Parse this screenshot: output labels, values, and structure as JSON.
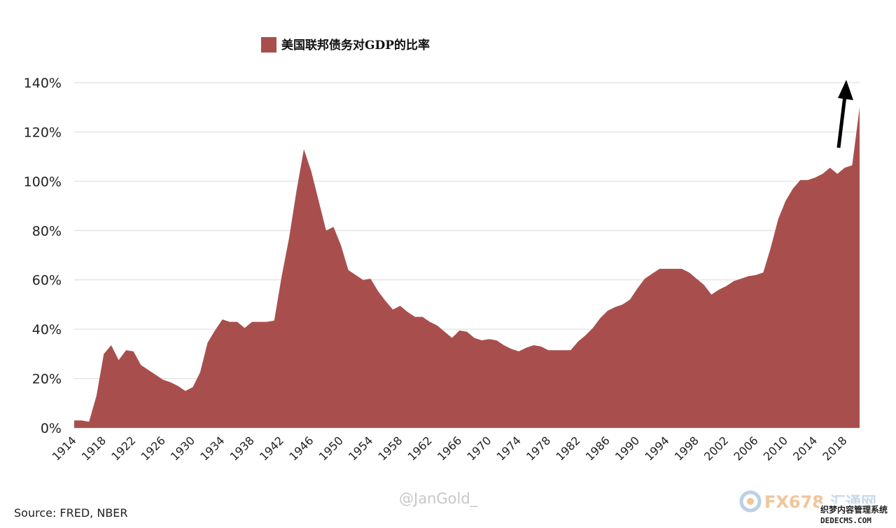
{
  "chart_data": {
    "type": "area",
    "legend": {
      "label": "美国联邦债务对GDP的比率",
      "color": "#a84f4e",
      "position": "top-left"
    },
    "x": [
      1914,
      1915,
      1916,
      1917,
      1918,
      1919,
      1920,
      1921,
      1922,
      1923,
      1924,
      1925,
      1926,
      1927,
      1928,
      1929,
      1930,
      1931,
      1932,
      1933,
      1934,
      1935,
      1936,
      1937,
      1938,
      1939,
      1940,
      1941,
      1942,
      1943,
      1944,
      1945,
      1946,
      1947,
      1948,
      1949,
      1950,
      1951,
      1952,
      1953,
      1954,
      1955,
      1956,
      1957,
      1958,
      1959,
      1960,
      1961,
      1962,
      1963,
      1964,
      1965,
      1966,
      1967,
      1968,
      1969,
      1970,
      1971,
      1972,
      1973,
      1974,
      1975,
      1976,
      1977,
      1978,
      1979,
      1980,
      1981,
      1982,
      1983,
      1984,
      1985,
      1986,
      1987,
      1988,
      1989,
      1990,
      1991,
      1992,
      1993,
      1994,
      1995,
      1996,
      1997,
      1998,
      1999,
      2000,
      2001,
      2002,
      2003,
      2004,
      2005,
      2006,
      2007,
      2008,
      2009,
      2010,
      2011,
      2012,
      2013,
      2014,
      2015,
      2016,
      2017,
      2018,
      2019,
      2020
    ],
    "series": [
      {
        "values": [
          3,
          3,
          2.5,
          13,
          30,
          33.5,
          27.5,
          31.5,
          31,
          25.5,
          23.5,
          21.5,
          19.5,
          18.5,
          17,
          15,
          16.5,
          22.5,
          34.5,
          39.5,
          44,
          43,
          43,
          40.5,
          43,
          43,
          43,
          43.5,
          61.5,
          77,
          96,
          113,
          104,
          92,
          80,
          81.5,
          74,
          64,
          62,
          60,
          60.5,
          55.5,
          51.5,
          48,
          49.5,
          47,
          45,
          45,
          43,
          41.5,
          39,
          36.5,
          39.5,
          39,
          36.5,
          35.5,
          36,
          35.5,
          33.5,
          32,
          31,
          32.5,
          33.5,
          33,
          31.5,
          31.5,
          31.5,
          31.5,
          35,
          37.5,
          40.5,
          44.5,
          47.5,
          49,
          50,
          52,
          56.5,
          60.5,
          62.5,
          64.5,
          64.5,
          64.5,
          64.5,
          63,
          60.5,
          58,
          54,
          56,
          57.5,
          59.5,
          60.5,
          61.5,
          62,
          63,
          73,
          84.5,
          92,
          97,
          100.5,
          100.5,
          101.5,
          103,
          105.5,
          103,
          105.5,
          106.5,
          130
        ]
      }
    ],
    "xticks": [
      "1914",
      "1918",
      "1922",
      "1926",
      "1930",
      "1934",
      "1938",
      "1942",
      "1946",
      "1950",
      "1954",
      "1958",
      "1962",
      "1966",
      "1970",
      "1974",
      "1978",
      "1982",
      "1986",
      "1990",
      "1994",
      "1998",
      "2002",
      "2006",
      "2010",
      "2014",
      "2018"
    ],
    "yticks": [
      "0%",
      "20%",
      "40%",
      "60%",
      "80%",
      "100%",
      "120%",
      "140%"
    ],
    "ylim": [
      0,
      140
    ],
    "xlim": [
      1914,
      2020
    ],
    "grid": "horizontal",
    "annotations": [
      {
        "type": "arrow",
        "color": "#000000",
        "note": "upward arrow at right end"
      }
    ]
  },
  "source": "Source: FRED, NBER",
  "watermark": "@JanGold_",
  "logo": {
    "main": "FX678",
    "sub": "汇通网",
    "cn": "织梦内容管理系统",
    "url": "DEDECMS.COM"
  }
}
